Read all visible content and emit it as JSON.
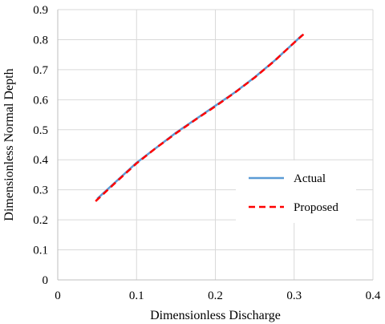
{
  "chart_data": {
    "type": "line",
    "title": "",
    "xlabel": "Dimensionless Discharge",
    "ylabel": "Dimensionless Normal Depth",
    "xlim": [
      0,
      0.4
    ],
    "ylim": [
      0,
      0.9
    ],
    "x_ticks": [
      "0",
      "0.1",
      "0.2",
      "0.3",
      "0.4"
    ],
    "y_ticks": [
      "0",
      "0.1",
      "0.2",
      "0.3",
      "0.4",
      "0.5",
      "0.6",
      "0.7",
      "0.8",
      "0.9"
    ],
    "grid": true,
    "legend_position": "right",
    "series": [
      {
        "name": "Actual",
        "color": "#5B9BD5",
        "style": "solid",
        "x": [
          0.05,
          0.075,
          0.1,
          0.125,
          0.15,
          0.175,
          0.2,
          0.225,
          0.25,
          0.275,
          0.3,
          0.31
        ],
        "y": [
          0.27,
          0.33,
          0.39,
          0.44,
          0.49,
          0.535,
          0.58,
          0.625,
          0.675,
          0.73,
          0.79,
          0.815
        ]
      },
      {
        "name": "Proposed",
        "color": "#FF0000",
        "style": "dashed",
        "x": [
          0.048,
          0.075,
          0.1,
          0.125,
          0.15,
          0.175,
          0.2,
          0.225,
          0.25,
          0.275,
          0.3,
          0.312
        ],
        "y": [
          0.262,
          0.328,
          0.388,
          0.44,
          0.488,
          0.534,
          0.578,
          0.624,
          0.674,
          0.729,
          0.79,
          0.818
        ]
      }
    ]
  }
}
